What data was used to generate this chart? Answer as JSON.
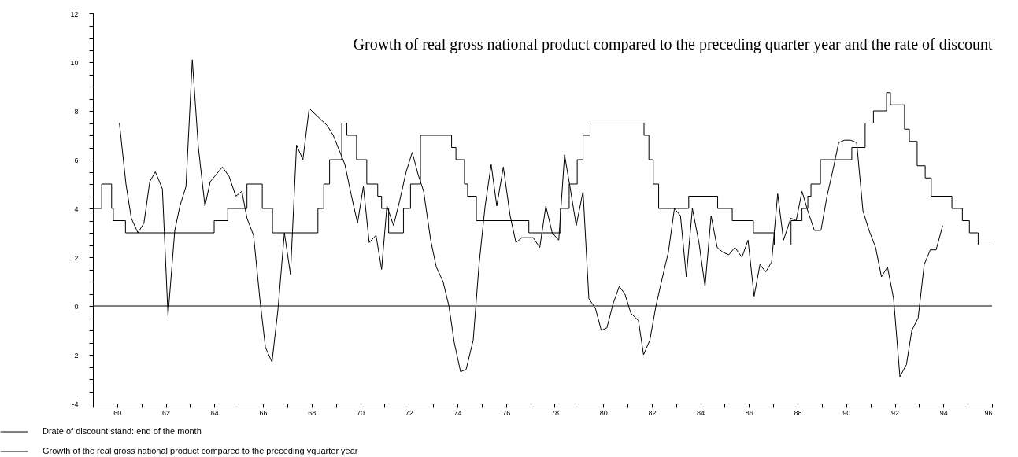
{
  "chart_data": {
    "type": "line",
    "title": "Growth of real gross national product compared to the preceding quarter year and the rate of discount",
    "xlim": [
      1959,
      1996
    ],
    "ylim": [
      -4,
      12
    ],
    "xticks": [
      {
        "value": 1959,
        "label": null
      },
      {
        "value": 1960,
        "label": "60"
      },
      {
        "value": 1961,
        "label": null
      },
      {
        "value": 1962,
        "label": "62"
      },
      {
        "value": 1963,
        "label": null
      },
      {
        "value": 1964,
        "label": "64"
      },
      {
        "value": 1965,
        "label": null
      },
      {
        "value": 1966,
        "label": "66"
      },
      {
        "value": 1967,
        "label": null
      },
      {
        "value": 1968,
        "label": "68"
      },
      {
        "value": 1969,
        "label": null
      },
      {
        "value": 1970,
        "label": "70"
      },
      {
        "value": 1971,
        "label": null
      },
      {
        "value": 1972,
        "label": "72"
      },
      {
        "value": 1973,
        "label": null
      },
      {
        "value": 1974,
        "label": "74"
      },
      {
        "value": 1975,
        "label": null
      },
      {
        "value": 1976,
        "label": "76"
      },
      {
        "value": 1977,
        "label": null
      },
      {
        "value": 1978,
        "label": "78"
      },
      {
        "value": 1979,
        "label": null
      },
      {
        "value": 1980,
        "label": "80"
      },
      {
        "value": 1981,
        "label": null
      },
      {
        "value": 1982,
        "label": "82"
      },
      {
        "value": 1983,
        "label": null
      },
      {
        "value": 1984,
        "label": "84"
      },
      {
        "value": 1985,
        "label": null
      },
      {
        "value": 1986,
        "label": "86"
      },
      {
        "value": 1987,
        "label": null
      },
      {
        "value": 1988,
        "label": "88"
      },
      {
        "value": 1989,
        "label": null
      },
      {
        "value": 1990,
        "label": "90"
      },
      {
        "value": 1991,
        "label": null
      },
      {
        "value": 1992,
        "label": "92"
      },
      {
        "value": 1993,
        "label": null
      },
      {
        "value": 1994,
        "label": "94"
      },
      {
        "value": 1995,
        "label": null
      },
      {
        "value": 1996,
        "label": "96"
      }
    ],
    "yticks": [
      -4,
      {
        "value": -3.5,
        "label": null
      },
      {
        "value": -3,
        "label": null
      },
      {
        "value": -2.5,
        "label": null
      },
      -2,
      {
        "value": -1.5,
        "label": null
      },
      {
        "value": -1,
        "label": null
      },
      {
        "value": -0.5,
        "label": null
      },
      0,
      {
        "value": 0.5,
        "label": null
      },
      {
        "value": 1,
        "label": null
      },
      {
        "value": 1.5,
        "label": null
      },
      2,
      {
        "value": 2.5,
        "label": null
      },
      {
        "value": 3,
        "label": null
      },
      {
        "value": 3.5,
        "label": null
      },
      4,
      {
        "value": 4.5,
        "label": null
      },
      {
        "value": 5,
        "label": null
      },
      {
        "value": 5.5,
        "label": null
      },
      6,
      {
        "value": 6.5,
        "label": null
      },
      {
        "value": 7,
        "label": null
      },
      {
        "value": 7.5,
        "label": null
      },
      8,
      {
        "value": 8.5,
        "label": null
      },
      {
        "value": 9,
        "label": null
      },
      {
        "value": 9.5,
        "label": null
      },
      10,
      {
        "value": 10.5,
        "label": null
      },
      {
        "value": 11,
        "label": null
      },
      {
        "value": 11.5,
        "label": null
      },
      12
    ],
    "grid": false,
    "legend": "bottom left",
    "marker": "none",
    "line_style": "solid",
    "ref_lines": [
      {
        "axis": "y",
        "value": 0,
        "color": "#000000"
      }
    ],
    "series": [
      {
        "name": "Drate of discount stand: end of the month",
        "type": "step",
        "color": "#000000",
        "x": [
          1959.0,
          1959.36,
          1959.77,
          1959.84,
          1960.34,
          1963.99,
          1964.55,
          1965.34,
          1965.97,
          1966.39,
          1968.26,
          1968.5,
          1968.74,
          1969.24,
          1969.45,
          1969.85,
          1970.27,
          1970.72,
          1970.88,
          1971.17,
          1971.78,
          1972.07,
          1972.48,
          1973.76,
          1973.94,
          1974.29,
          1974.42,
          1974.78,
          1976.94,
          1978.24,
          1978.6,
          1978.93,
          1979.17,
          1979.46,
          1981.68,
          1981.88,
          1982.06,
          1982.28,
          1983.52,
          1984.71,
          1985.31,
          1986.18,
          1987.04,
          1987.73,
          1988.18,
          1988.42,
          1988.55,
          1988.94,
          1990.23,
          1990.78,
          1991.12,
          1991.66,
          1991.82,
          1992.4,
          1992.6,
          1992.92,
          1993.25,
          1993.5,
          1994.35,
          1994.78,
          1995.07,
          1995.43,
          1995.95
        ],
        "values": [
          4.0,
          5.0,
          4.0,
          3.5,
          3.0,
          3.5,
          4.0,
          5.0,
          4.0,
          3.0,
          4.0,
          5.0,
          6.0,
          7.5,
          7.0,
          6.0,
          5.0,
          4.5,
          4.0,
          3.0,
          4.0,
          5.0,
          7.0,
          6.5,
          6.0,
          5.0,
          4.5,
          3.5,
          3.0,
          4.0,
          5.0,
          6.0,
          7.0,
          7.5,
          7.0,
          6.0,
          5.0,
          4.0,
          4.5,
          4.0,
          3.5,
          3.0,
          2.5,
          3.5,
          4.0,
          4.5,
          5.0,
          6.0,
          6.5,
          7.5,
          8.0,
          8.75,
          8.25,
          7.25,
          6.75,
          5.75,
          5.25,
          4.5,
          4.0,
          3.5,
          3.0,
          2.5,
          2.5
        ]
      },
      {
        "name": "Growth of the real gross national product compared to the preceding yquarter year",
        "type": "line",
        "color": "#000000",
        "x": [
          1960.09,
          1960.36,
          1960.58,
          1960.85,
          1961.1,
          1961.34,
          1961.57,
          1961.86,
          1962.09,
          1962.37,
          1962.58,
          1962.83,
          1963.09,
          1963.34,
          1963.61,
          1963.83,
          1964.33,
          1964.61,
          1964.88,
          1965.13,
          1965.34,
          1965.61,
          1965.88,
          1966.1,
          1966.37,
          1966.62,
          1966.88,
          1967.13,
          1967.38,
          1967.64,
          1967.9,
          1968.64,
          1968.89,
          1969.37,
          1969.62,
          1969.89,
          1970.13,
          1970.37,
          1970.65,
          1970.88,
          1971.1,
          1971.37,
          1971.62,
          1971.89,
          1972.14,
          1972.38,
          1972.61,
          1972.9,
          1973.13,
          1973.41,
          1973.65,
          1973.87,
          1974.13,
          1974.36,
          1974.65,
          1974.89,
          1975.14,
          1975.39,
          1975.62,
          1975.89,
          1976.17,
          1976.41,
          1976.65,
          1976.89,
          1977.12,
          1977.39,
          1977.64,
          1977.9,
          1978.17,
          1978.41,
          1978.63,
          1978.89,
          1979.17,
          1979.41,
          1979.68,
          1979.92,
          1980.15,
          1980.41,
          1980.66,
          1980.89,
          1981.14,
          1981.45,
          1981.66,
          1981.92,
          1982.17,
          1982.42,
          1982.68,
          1982.93,
          1983.18,
          1983.42,
          1983.67,
          1983.94,
          1984.19,
          1984.44,
          1984.69,
          1984.93,
          1985.17,
          1985.42,
          1985.71,
          1985.96,
          1986.21,
          1986.45,
          1986.69,
          1986.93,
          1987.18,
          1987.42,
          1987.72,
          1987.94,
          1988.18,
          1988.42,
          1988.69,
          1988.96,
          1989.21,
          1989.46,
          1989.69,
          1989.93,
          1990.18,
          1990.43,
          1990.69,
          1990.94,
          1991.21,
          1991.45,
          1991.7,
          1991.95,
          1992.21,
          1992.48,
          1992.7,
          1992.96,
          1993.21,
          1993.46,
          1993.7,
          1993.97
        ],
        "values": [
          7.5,
          5.0,
          3.6,
          3.0,
          3.4,
          5.1,
          5.5,
          4.8,
          -0.4,
          3.1,
          4.1,
          4.9,
          10.1,
          6.5,
          4.1,
          5.1,
          5.7,
          5.3,
          4.5,
          4.7,
          3.6,
          2.9,
          0.2,
          -1.7,
          -2.3,
          -0.1,
          3.0,
          1.3,
          6.6,
          6.0,
          8.1,
          7.4,
          7.0,
          5.8,
          4.6,
          3.4,
          4.9,
          2.6,
          2.9,
          1.5,
          4.1,
          3.3,
          4.3,
          5.5,
          6.3,
          5.4,
          4.7,
          2.7,
          1.6,
          1.0,
          0.0,
          -1.5,
          -2.7,
          -2.6,
          -1.4,
          1.7,
          4.1,
          5.8,
          4.1,
          5.7,
          3.7,
          2.6,
          2.8,
          2.8,
          2.8,
          2.4,
          4.1,
          3.0,
          2.7,
          6.2,
          4.9,
          3.3,
          4.7,
          0.3,
          -0.1,
          -1.0,
          -0.9,
          0.1,
          0.8,
          0.5,
          -0.3,
          -0.6,
          -2.0,
          -1.4,
          0.0,
          1.1,
          2.2,
          4.0,
          3.7,
          1.2,
          4.0,
          2.6,
          0.8,
          3.7,
          2.4,
          2.2,
          2.1,
          2.4,
          2.0,
          2.7,
          0.4,
          1.7,
          1.4,
          1.8,
          4.6,
          2.7,
          3.6,
          3.5,
          4.7,
          3.9,
          3.1,
          3.1,
          4.5,
          5.6,
          6.7,
          6.8,
          6.8,
          6.7,
          3.9,
          3.1,
          2.4,
          1.2,
          1.6,
          0.3,
          -2.9,
          -2.4,
          -1.0,
          -0.5,
          1.7,
          2.3,
          2.3,
          3.3
        ]
      }
    ]
  }
}
